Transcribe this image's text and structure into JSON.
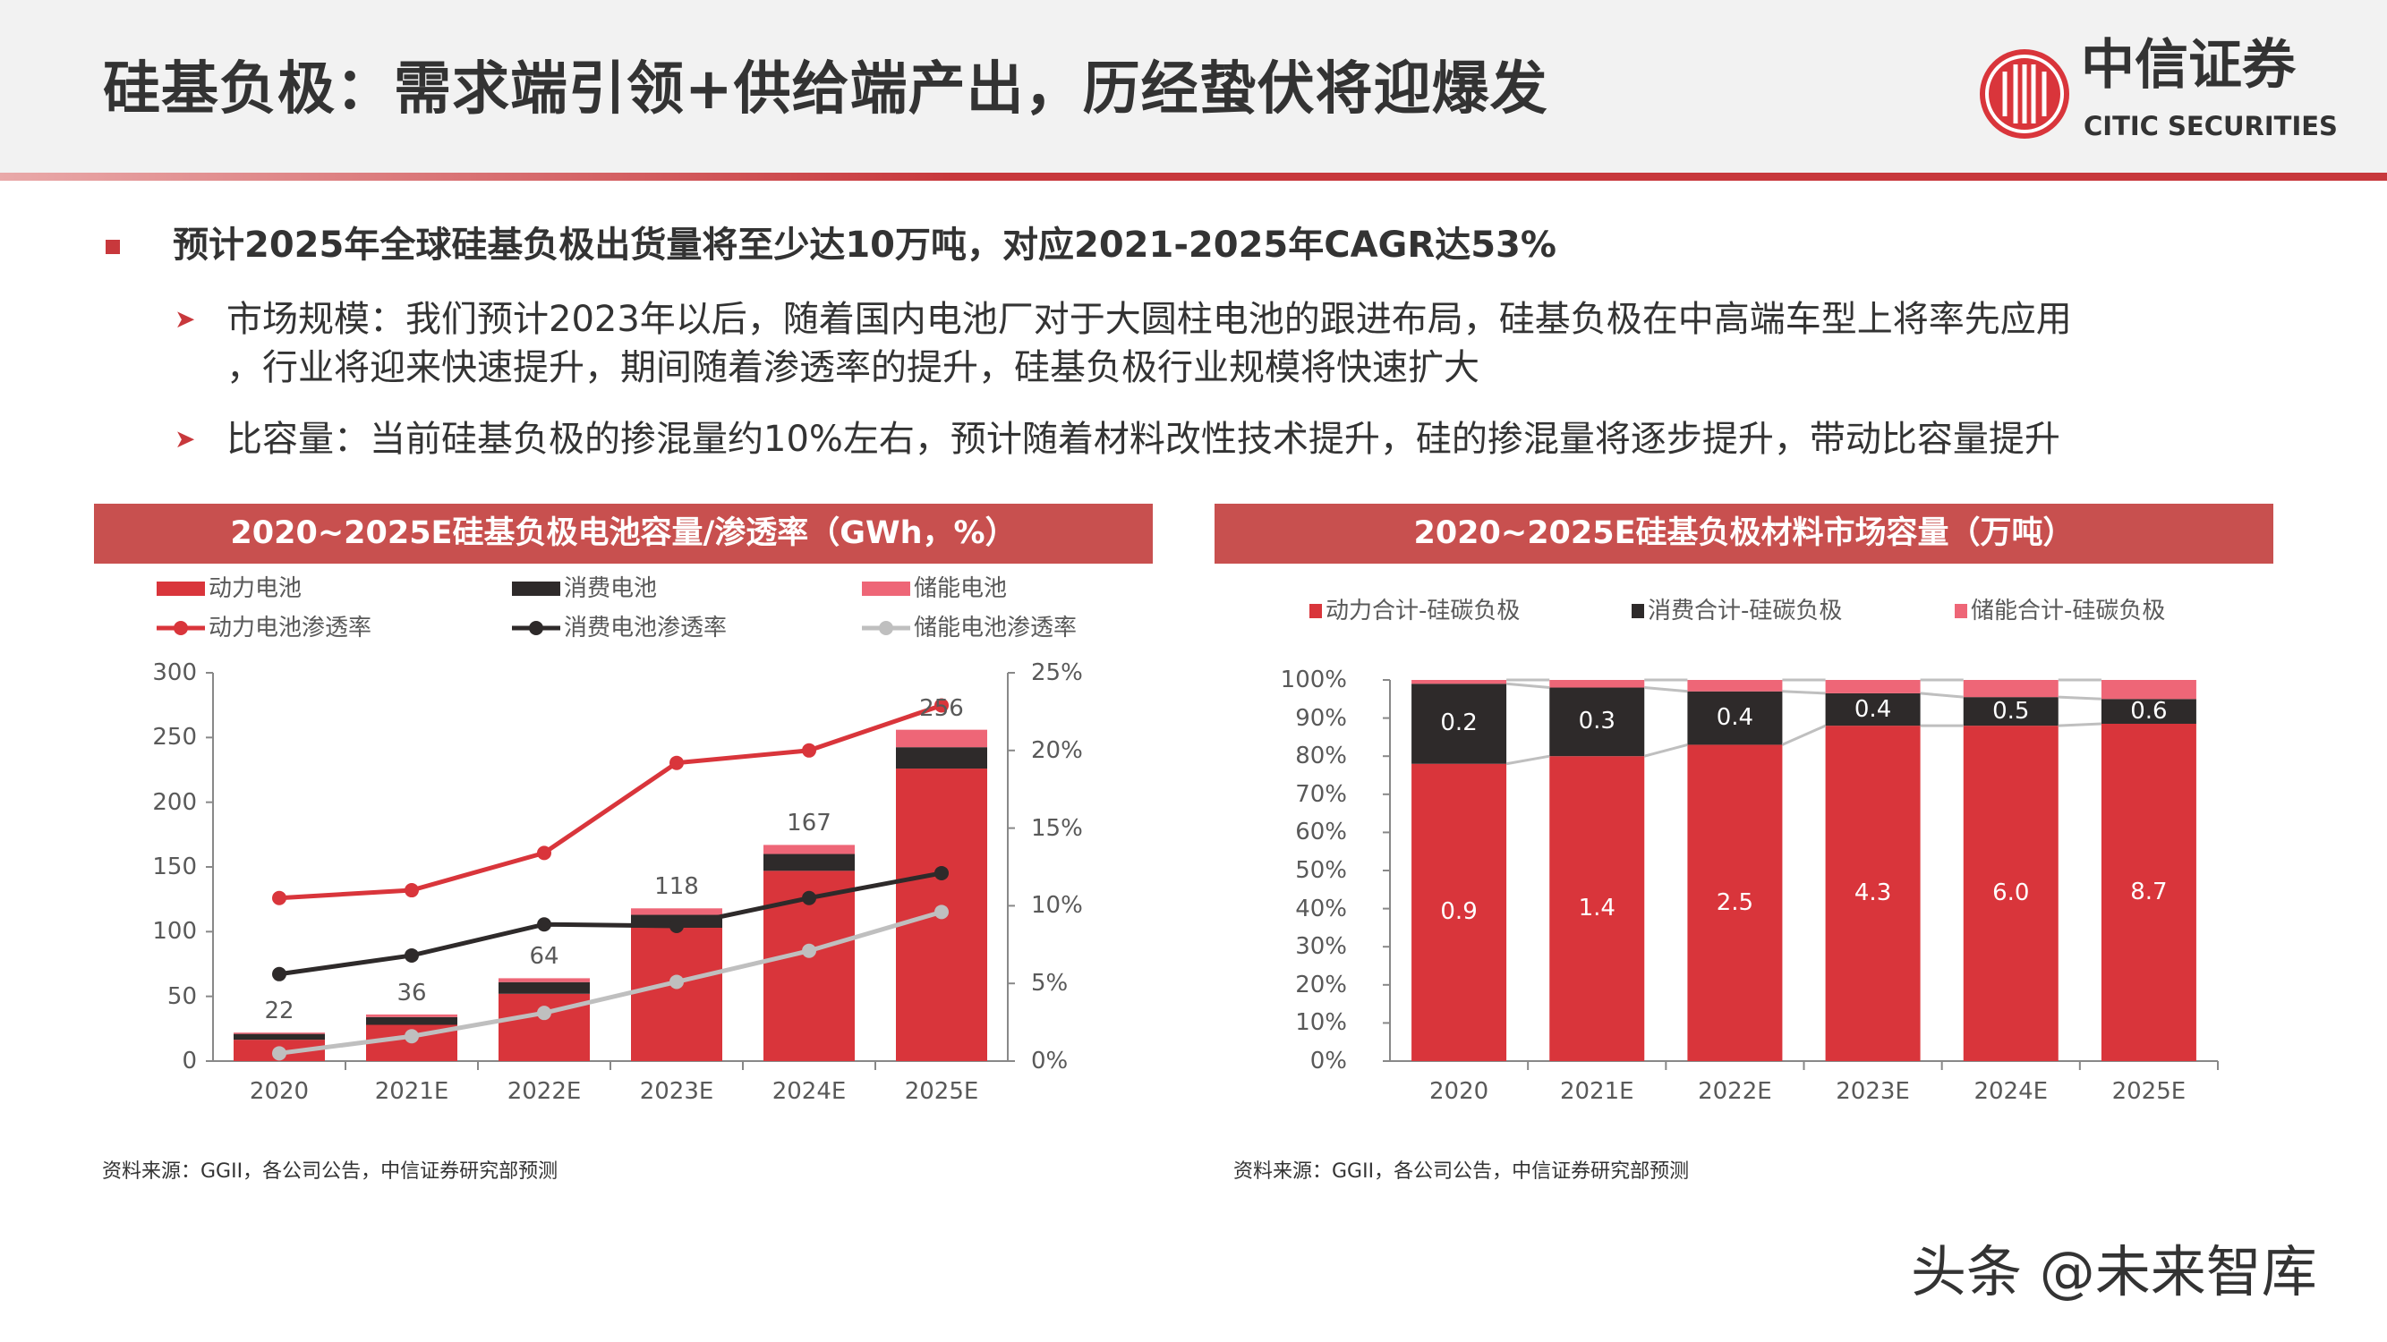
{
  "header": {
    "title": "硅基负极：需求端引领+供给端产出，历经蛰伏将迎爆发",
    "logo": {
      "cn": "中信证券",
      "en": "CITIC SECURITIES",
      "icon": "citic-logo-icon"
    }
  },
  "bullets": {
    "main": "预计2025年全球硅基负极出货量将至少达10万吨，对应2021-2025年CAGR达53%",
    "sub": [
      {
        "line1": "市场规模：我们预计2023年以后，随着国内电池厂对于大圆柱电池的跟进布局，硅基负极在中高端车型上将率先应用",
        "line2": "，行业将迎来快速提升，期间随着渗透率的提升，硅基负极行业规模将快速扩大"
      },
      {
        "line1": "比容量：当前硅基负极的掺混量约10%左右，预计随着材料改性技术提升，硅的掺混量将逐步提升，带动比容量提升"
      }
    ]
  },
  "colors": {
    "power": "#d9353b",
    "consumer": "#2e2a2a",
    "storage": "#ee6677",
    "storage_line": "#bfbfbf",
    "title_bar": "#c8504f"
  },
  "chart_data": [
    {
      "type": "bar",
      "stacked": true,
      "title": "2020~2025E硅基负极电池容量/渗透率（GWh，%）",
      "categories": [
        "2020",
        "2021E",
        "2022E",
        "2023E",
        "2024E",
        "2025E"
      ],
      "ylim": [
        0,
        300
      ],
      "yticks": [
        "0",
        "50",
        "100",
        "150",
        "200",
        "250",
        "300"
      ],
      "y2lim": [
        0,
        25
      ],
      "y2ticks": [
        "0%",
        "5%",
        "10%",
        "15%",
        "20%",
        "25%"
      ],
      "series": [
        {
          "name": "动力电池",
          "values": [
            16.5,
            28,
            52,
            103,
            147,
            226
          ]
        },
        {
          "name": "消费电池",
          "values": [
            4.5,
            6,
            9,
            10,
            13,
            16.5
          ]
        },
        {
          "name": "储能电池",
          "values": [
            1,
            2,
            3,
            5,
            7,
            13.5
          ]
        }
      ],
      "totals": [
        "22",
        "36",
        "64",
        "118",
        "167",
        "256"
      ],
      "lines": [
        {
          "name": "动力电池渗透率",
          "axis": "right",
          "values": [
            10.5,
            11.0,
            13.4,
            19.2,
            20.0,
            22.9
          ]
        },
        {
          "name": "消费电池渗透率",
          "axis": "right",
          "values": [
            5.6,
            6.8,
            8.8,
            8.7,
            10.5,
            12.1
          ]
        },
        {
          "name": "储能电池渗透率",
          "axis": "right",
          "values": [
            0.5,
            1.6,
            3.1,
            5.1,
            7.1,
            9.6
          ]
        }
      ],
      "legend": "top",
      "grid": false,
      "source": "资料来源：GGII，各公司公告，中信证券研究部预测"
    },
    {
      "type": "bar",
      "stacked": true,
      "percent": true,
      "title": "2020~2025E硅基负极材料市场容量（万吨）",
      "categories": [
        "2020",
        "2021E",
        "2022E",
        "2023E",
        "2024E",
        "2025E"
      ],
      "ylim": [
        0,
        100
      ],
      "yticks": [
        "0%",
        "10%",
        "20%",
        "30%",
        "40%",
        "50%",
        "60%",
        "70%",
        "80%",
        "90%",
        "100%"
      ],
      "series": [
        {
          "name": "动力合计-硅碳负极",
          "share_percent": [
            78,
            80,
            83,
            88,
            88,
            88.5
          ],
          "labels": [
            "0.9",
            "1.4",
            "2.5",
            "4.3",
            "6.0",
            "8.7"
          ]
        },
        {
          "name": "消费合计-硅碳负极",
          "share_percent": [
            21,
            18,
            14,
            8.5,
            7.5,
            6.5
          ],
          "labels": [
            "0.2",
            "0.3",
            "0.4",
            "0.4",
            "0.5",
            "0.6"
          ]
        },
        {
          "name": "储能合计-硅碳负极",
          "share_percent": [
            1,
            2,
            3,
            3.5,
            4.5,
            5
          ]
        }
      ],
      "legend": "top",
      "grid": false,
      "source": "资料来源：GGII，各公司公告，中信证券研究部预测"
    }
  ],
  "watermark": "头条 @未来智库"
}
